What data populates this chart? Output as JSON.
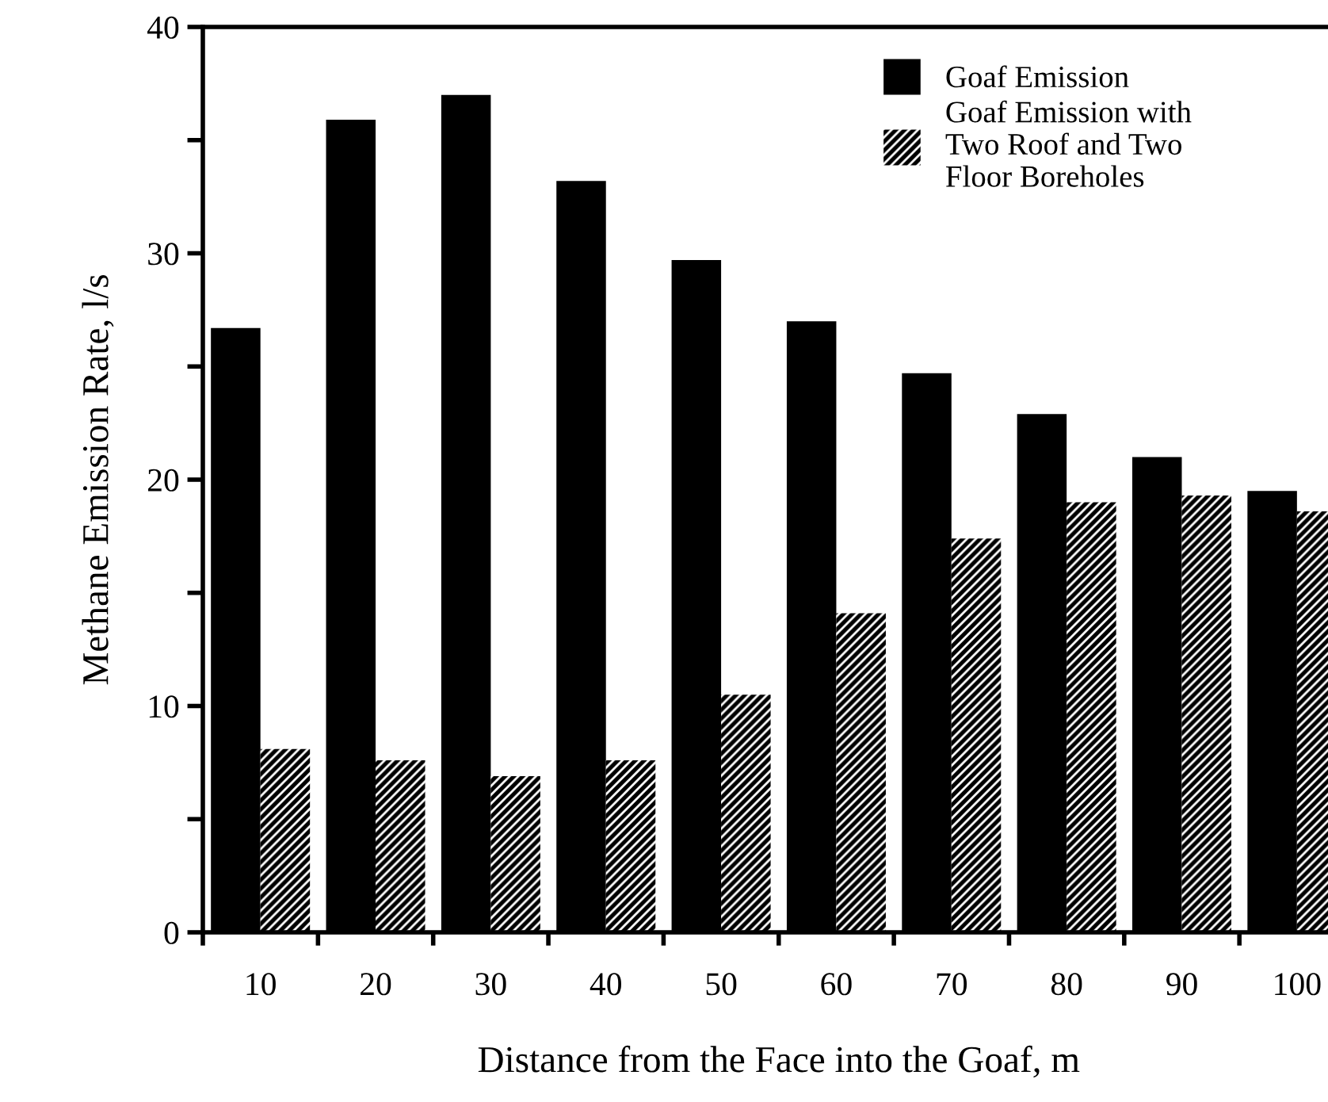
{
  "chart_data": {
    "type": "bar",
    "xlabel": "Distance from the Face into the Goaf, m",
    "ylabel": "Methane Emission Rate, l/s",
    "categories": [
      "10",
      "20",
      "30",
      "40",
      "50",
      "60",
      "70",
      "80",
      "90",
      "100"
    ],
    "series": [
      {
        "name": "Goaf Emission",
        "color": "#000000",
        "values": [
          26.7,
          35.9,
          37.0,
          33.2,
          29.7,
          27.0,
          24.7,
          22.9,
          21.0,
          19.5
        ]
      },
      {
        "name": "Goaf Emission with\nTwo Roof and Two\nFloor Boreholes",
        "color": "#000000",
        "values": [
          8.1,
          7.6,
          6.9,
          7.6,
          10.5,
          14.1,
          17.4,
          19.0,
          19.3,
          18.6
        ]
      }
    ],
    "ylim": [
      0,
      40
    ],
    "yticks": [
      0,
      {
        "value": 5,
        "label": null
      },
      10,
      {
        "value": 15,
        "label": null
      },
      20,
      {
        "value": 25,
        "label": null
      },
      30,
      {
        "value": 35,
        "label": null
      },
      40
    ],
    "legend": "top right",
    "grid": false
  }
}
